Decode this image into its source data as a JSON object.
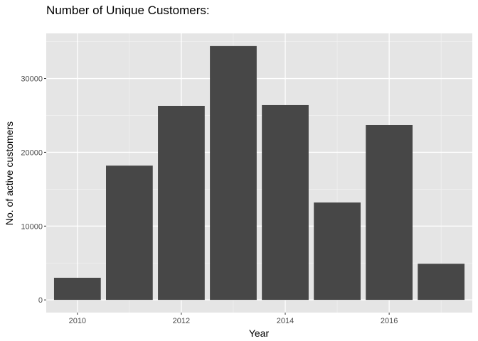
{
  "chart_data": {
    "type": "bar",
    "title": "Number of Unique Customers:",
    "xlabel": "Year",
    "ylabel": "No. of active customers",
    "x": [
      2010,
      2011,
      2012,
      2013,
      2014,
      2015,
      2016,
      2017
    ],
    "values": [
      3000,
      18200,
      26300,
      34400,
      26400,
      13200,
      23700,
      4900
    ],
    "xlim": [
      2009.4,
      2017.6
    ],
    "ylim": [
      -1720,
      36120
    ],
    "x_ticks": [
      "2010",
      "2012",
      "2014",
      "2016"
    ],
    "y_ticks": [
      "0",
      "10000",
      "20000",
      "30000"
    ],
    "grid": true,
    "colors": {
      "bar": "#474747",
      "panel": "#e5e5e5",
      "grid_major": "#ffffff",
      "grid_minor": "#f2f2f2"
    }
  }
}
